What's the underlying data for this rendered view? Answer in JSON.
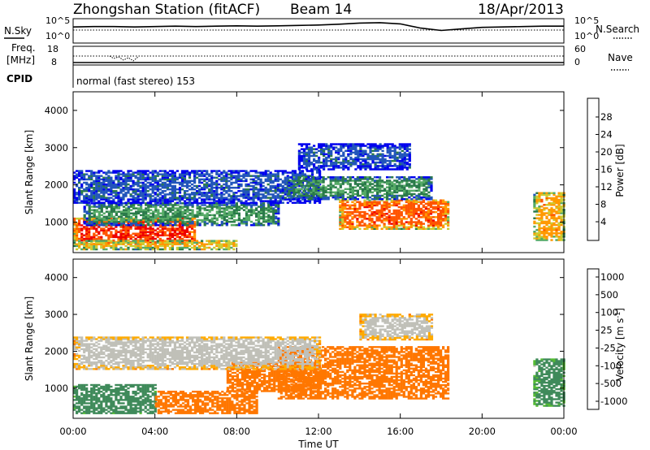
{
  "header": {
    "station": "Zhongshan Station (fitACF)",
    "beam": "Beam 14",
    "date": "18/Apr/2013"
  },
  "noise_panel": {
    "left_label": "N.Sky",
    "left_ticks": [
      "10^5",
      "10^0"
    ],
    "right_label": "N.Search",
    "right_ticks": [
      "10^5",
      "10^0"
    ],
    "sky_log_series": [
      3.5,
      3.6,
      3.6,
      3.5,
      3.6,
      3.7,
      3.6,
      3.7,
      3.8,
      3.7,
      3.8,
      3.9,
      4.0,
      4.2,
      4.5,
      4.6,
      4.3,
      3.2,
      2.6,
      3.0,
      3.4,
      3.5,
      3.6,
      3.7,
      3.7
    ]
  },
  "freq_panel": {
    "left_label_top": "Freq.",
    "left_label_bottom": "[MHz]",
    "left_ticks": [
      "18",
      "8"
    ],
    "right_label": "Nave",
    "right_ticks": [
      "60",
      "0"
    ],
    "cpid_label": "CPID",
    "cpid_text": "normal (fast stereo) 153"
  },
  "x_axis": {
    "ticks": [
      "00:00",
      "04:00",
      "08:00",
      "12:00",
      "16:00",
      "20:00",
      "00:00"
    ],
    "label": "Time UT"
  },
  "y_axis": {
    "ticks": [
      "4000",
      "3000",
      "2000",
      "1000"
    ],
    "label": "Slant Range [km]"
  },
  "power_scale": {
    "label": "Power [dB]",
    "ticks": [
      "28",
      "24",
      "20",
      "16",
      "12",
      "8",
      "4"
    ],
    "colors": [
      "#0000ee",
      "#2255bb",
      "#2a7a4a",
      "#55aa66",
      "#cccc33",
      "#ff9900",
      "#ff5500",
      "#ee0000"
    ]
  },
  "velocity_scale": {
    "label": "Velocity [m s",
    "label_sup": "-1",
    "label_end": "]",
    "ticks": [
      "1000",
      "500",
      "100",
      "25",
      "-25",
      "-100",
      "-500",
      "-1000"
    ],
    "colors": [
      "#1a3ea8",
      "#2d6a55",
      "#3f8a5a",
      "#55bb33",
      "#c0c0b8",
      "#ffaa00",
      "#ff7700",
      "#ee4400",
      "#ee0000"
    ]
  },
  "chart_data": [
    {
      "type": "heatmap",
      "title": "Power",
      "xlabel": "Time UT",
      "ylabel": "Slant Range [km]",
      "xlim": [
        0,
        24
      ],
      "ylim": [
        180,
        4500
      ],
      "zlabel": "Power [dB]",
      "zlim": [
        0,
        32
      ],
      "regions": [
        {
          "t0": 0.0,
          "t1": 6.0,
          "r0": 400,
          "r1": 1100,
          "power": 28
        },
        {
          "t0": 0.0,
          "t1": 8.0,
          "r0": 250,
          "r1": 500,
          "power": 22
        },
        {
          "t0": 0.5,
          "t1": 10.0,
          "r0": 900,
          "r1": 1500,
          "power": 12
        },
        {
          "t0": 0.0,
          "t1": 12.0,
          "r0": 1500,
          "r1": 2400,
          "power": 6
        },
        {
          "t0": 13.0,
          "t1": 18.3,
          "r0": 800,
          "r1": 1600,
          "power": 26
        },
        {
          "t0": 10.5,
          "t1": 17.5,
          "r0": 1600,
          "r1": 2200,
          "power": 12
        },
        {
          "t0": 11.0,
          "t1": 16.5,
          "r0": 2400,
          "r1": 3100,
          "power": 6
        },
        {
          "t0": 22.5,
          "t1": 24.0,
          "r0": 500,
          "r1": 1800,
          "power": 22
        }
      ]
    },
    {
      "type": "heatmap",
      "title": "Velocity",
      "xlabel": "Time UT",
      "ylabel": "Slant Range [km]",
      "xlim": [
        0,
        24
      ],
      "ylim": [
        180,
        4500
      ],
      "zlabel": "Velocity [m s-1]",
      "zlim": [
        -1000,
        1000
      ],
      "regions": [
        {
          "t0": 0.0,
          "t1": 4.0,
          "r0": 300,
          "r1": 1100,
          "velocity": 200
        },
        {
          "t0": 4.0,
          "t1": 9.0,
          "r0": 300,
          "r1": 900,
          "velocity": -150
        },
        {
          "t0": 7.5,
          "t1": 12.0,
          "r0": 900,
          "r1": 1700,
          "velocity": -150
        },
        {
          "t0": 10.0,
          "t1": 18.3,
          "r0": 700,
          "r1": 2100,
          "velocity": -200
        },
        {
          "t0": 0.0,
          "t1": 12.0,
          "r0": 1500,
          "r1": 2400,
          "velocity": 0
        },
        {
          "t0": 14.0,
          "t1": 17.5,
          "r0": 2300,
          "r1": 3000,
          "velocity": 0
        },
        {
          "t0": 22.5,
          "t1": 24.0,
          "r0": 500,
          "r1": 1800,
          "velocity": 150
        }
      ]
    }
  ]
}
